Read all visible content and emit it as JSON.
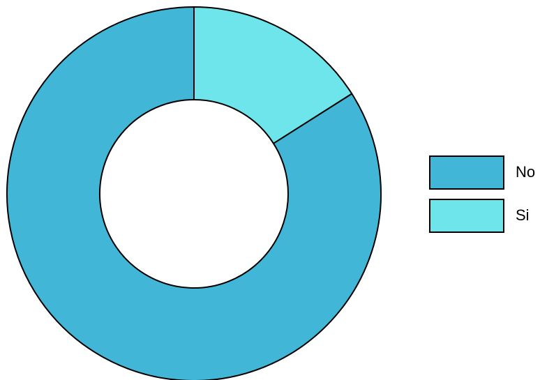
{
  "chart_data": {
    "type": "pie",
    "donut": true,
    "categories": [
      "No",
      "Si"
    ],
    "values": [
      84,
      16
    ],
    "colors": [
      "#41b6d6",
      "#6de5ea"
    ],
    "legend": [
      {
        "label": "No",
        "color": "#41b6d6"
      },
      {
        "label": "Si",
        "color": "#6de5ea"
      }
    ],
    "legend_position": "right",
    "title": ""
  }
}
